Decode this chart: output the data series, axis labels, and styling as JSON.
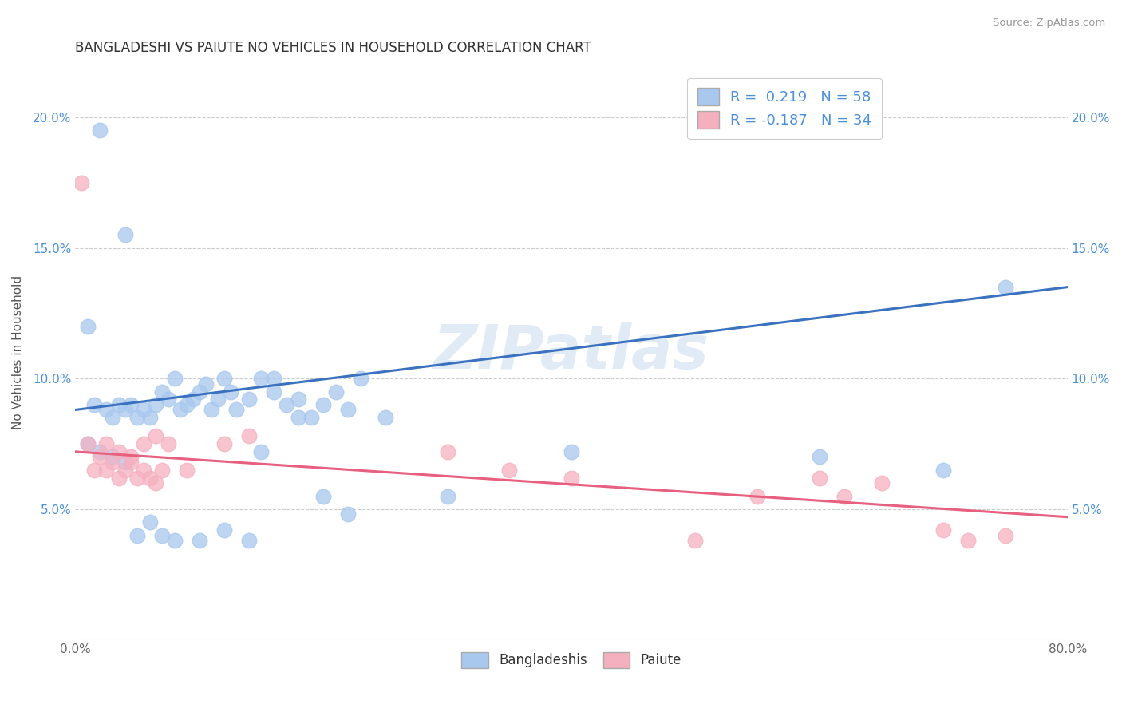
{
  "title": "BANGLADESHI VS PAIUTE NO VEHICLES IN HOUSEHOLD CORRELATION CHART",
  "source": "Source: ZipAtlas.com",
  "ylabel": "No Vehicles in Household",
  "xlabel": "",
  "xlim": [
    0.0,
    0.8
  ],
  "ylim": [
    0.0,
    0.22
  ],
  "x_ticks": [
    0.0,
    0.1,
    0.2,
    0.3,
    0.4,
    0.5,
    0.6,
    0.7,
    0.8
  ],
  "y_ticks": [
    0.0,
    0.05,
    0.1,
    0.15,
    0.2
  ],
  "x_tick_labels": [
    "0.0%",
    "",
    "",
    "",
    "",
    "",
    "",
    "",
    "80.0%"
  ],
  "y_tick_labels": [
    "",
    "5.0%",
    "10.0%",
    "15.0%",
    "20.0%"
  ],
  "blue_R": 0.219,
  "blue_N": 58,
  "pink_R": -0.187,
  "pink_N": 34,
  "blue_color": "#A8C8EE",
  "pink_color": "#F5B0C0",
  "blue_line_color": "#3B72C0",
  "pink_line_color": "#E86080",
  "watermark": "ZIPatlas",
  "blue_line_x0": 0.0,
  "blue_line_y0": 0.088,
  "blue_line_x1": 0.8,
  "blue_line_y1": 0.135,
  "pink_line_x0": 0.0,
  "pink_line_y0": 0.072,
  "pink_line_x1": 0.8,
  "pink_line_y1": 0.047,
  "blue_scatter_x": [
    0.02,
    0.04,
    0.01,
    0.015,
    0.025,
    0.03,
    0.035,
    0.04,
    0.045,
    0.05,
    0.055,
    0.06,
    0.065,
    0.07,
    0.075,
    0.08,
    0.085,
    0.09,
    0.095,
    0.1,
    0.105,
    0.11,
    0.115,
    0.12,
    0.125,
    0.13,
    0.14,
    0.15,
    0.16,
    0.17,
    0.18,
    0.19,
    0.2,
    0.21,
    0.22,
    0.23,
    0.25,
    0.01,
    0.02,
    0.03,
    0.04,
    0.05,
    0.06,
    0.07,
    0.08,
    0.1,
    0.12,
    0.14,
    0.15,
    0.16,
    0.18,
    0.2,
    0.22,
    0.3,
    0.4,
    0.6,
    0.7,
    0.75
  ],
  "blue_scatter_y": [
    0.195,
    0.155,
    0.12,
    0.09,
    0.088,
    0.085,
    0.09,
    0.088,
    0.09,
    0.085,
    0.088,
    0.085,
    0.09,
    0.095,
    0.092,
    0.1,
    0.088,
    0.09,
    0.092,
    0.095,
    0.098,
    0.088,
    0.092,
    0.1,
    0.095,
    0.088,
    0.092,
    0.1,
    0.095,
    0.09,
    0.092,
    0.085,
    0.09,
    0.095,
    0.088,
    0.1,
    0.085,
    0.075,
    0.072,
    0.07,
    0.068,
    0.04,
    0.045,
    0.04,
    0.038,
    0.038,
    0.042,
    0.038,
    0.072,
    0.1,
    0.085,
    0.055,
    0.048,
    0.055,
    0.072,
    0.07,
    0.065,
    0.135
  ],
  "pink_scatter_x": [
    0.005,
    0.01,
    0.015,
    0.02,
    0.025,
    0.03,
    0.035,
    0.04,
    0.045,
    0.05,
    0.055,
    0.06,
    0.065,
    0.07,
    0.025,
    0.035,
    0.045,
    0.055,
    0.065,
    0.075,
    0.09,
    0.12,
    0.14,
    0.3,
    0.35,
    0.4,
    0.5,
    0.55,
    0.6,
    0.62,
    0.65,
    0.7,
    0.72,
    0.75
  ],
  "pink_scatter_y": [
    0.175,
    0.075,
    0.065,
    0.07,
    0.065,
    0.068,
    0.062,
    0.065,
    0.068,
    0.062,
    0.065,
    0.062,
    0.06,
    0.065,
    0.075,
    0.072,
    0.07,
    0.075,
    0.078,
    0.075,
    0.065,
    0.075,
    0.078,
    0.072,
    0.065,
    0.062,
    0.038,
    0.055,
    0.062,
    0.055,
    0.06,
    0.042,
    0.038,
    0.04
  ]
}
